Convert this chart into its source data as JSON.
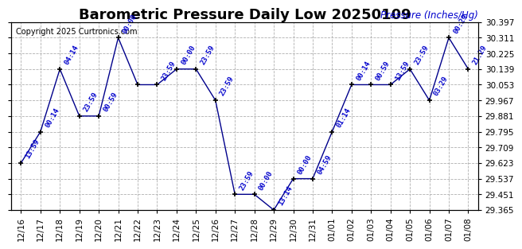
{
  "title": "Barometric Pressure Daily Low 20250109",
  "copyright": "Copyright 2025 Curtronics.com",
  "ylabel": "Pressure (Inches/Hg)",
  "ylabel_color": "#0000cc",
  "line_color": "#00008b",
  "marker_color": "#000000",
  "background_color": "#ffffff",
  "grid_color": "#b0b0b0",
  "ylim_min": 29.365,
  "ylim_max": 30.397,
  "yticks": [
    29.365,
    29.451,
    29.537,
    29.623,
    29.709,
    29.795,
    29.881,
    29.967,
    30.053,
    30.139,
    30.225,
    30.311,
    30.397
  ],
  "x_labels": [
    "12/16",
    "12/17",
    "12/18",
    "12/19",
    "12/20",
    "12/21",
    "12/22",
    "12/23",
    "12/24",
    "12/25",
    "12/26",
    "12/27",
    "12/28",
    "12/29",
    "12/30",
    "12/31",
    "01/01",
    "01/02",
    "01/03",
    "01/04",
    "01/05",
    "01/06",
    "01/07",
    "01/08"
  ],
  "y_values": [
    29.623,
    29.795,
    30.139,
    29.881,
    29.881,
    30.311,
    30.053,
    30.053,
    30.139,
    30.139,
    29.967,
    29.451,
    29.451,
    29.365,
    29.537,
    29.537,
    29.795,
    30.053,
    30.053,
    30.053,
    30.139,
    29.967,
    30.311,
    30.139
  ],
  "point_labels": [
    "13:59",
    "00:14",
    "04:14",
    "23:59",
    "00:59",
    "00:00",
    "",
    "23:59",
    "00:00",
    "23:59",
    "23:59",
    "23:59",
    "00:00",
    "13:14",
    "00:00",
    "04:59",
    "01:14",
    "00:14",
    "00:59",
    "13:59",
    "23:59",
    "03:29",
    "00:29",
    "21:29"
  ],
  "label_color": "#0000cc",
  "title_fontsize": 13,
  "tick_fontsize": 7.5,
  "point_label_fontsize": 6.5,
  "ylabel_fontsize": 8.5,
  "copyright_fontsize": 7
}
